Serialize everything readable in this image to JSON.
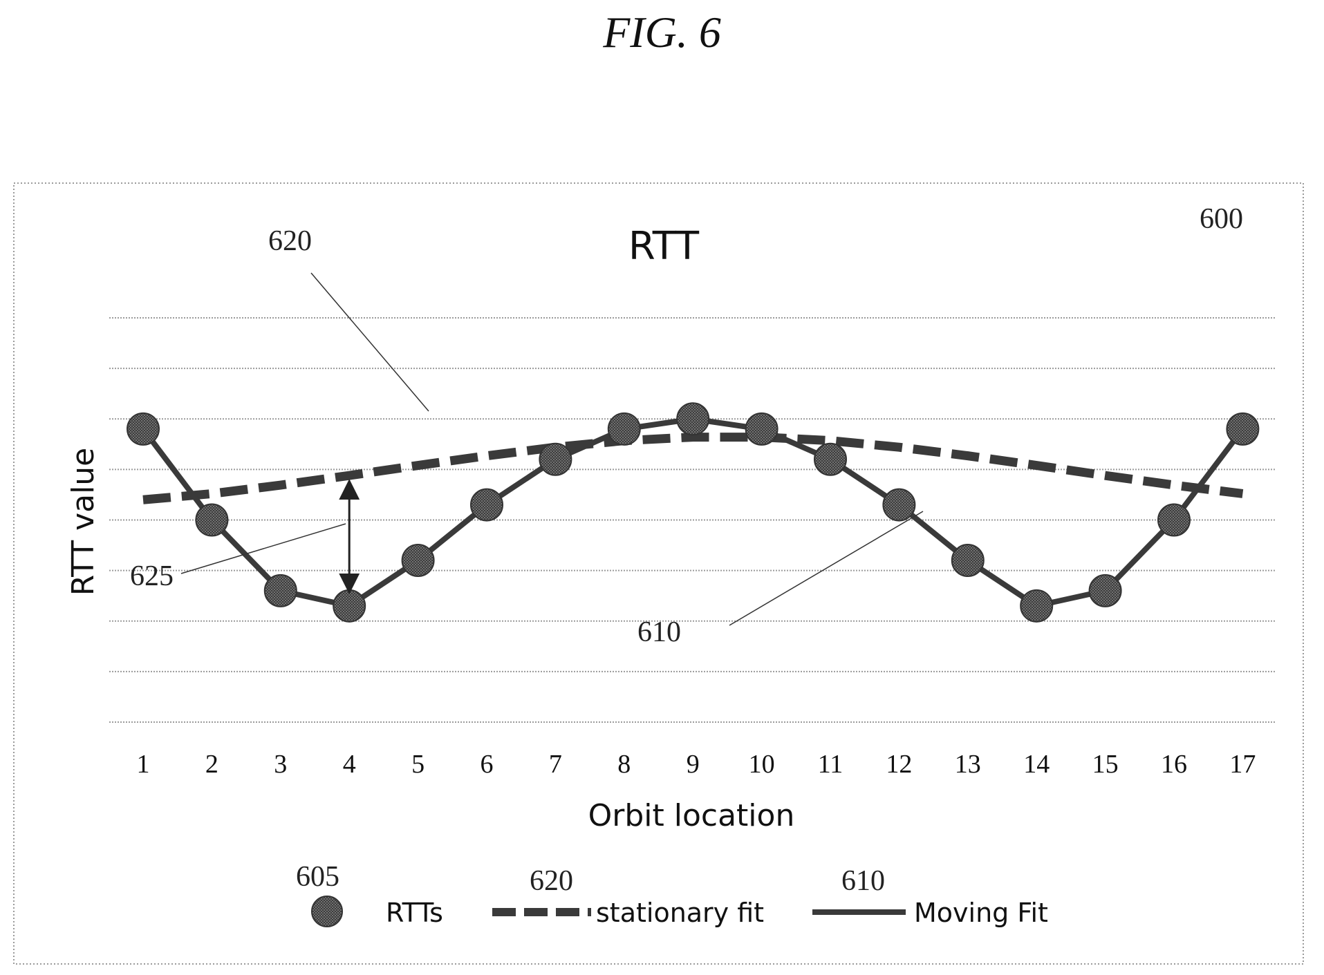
{
  "figure_label": "FIG. 6",
  "chart_data": {
    "type": "line",
    "title": "RTT",
    "xlabel": "Orbit location",
    "ylabel": "RTT value",
    "categories": [
      "1",
      "2",
      "3",
      "4",
      "5",
      "6",
      "7",
      "8",
      "9",
      "10",
      "11",
      "12",
      "13",
      "14",
      "15",
      "16",
      "17"
    ],
    "ylim": [
      0,
      8
    ],
    "grid": true,
    "legend_position": "bottom",
    "series": [
      {
        "name": "RTTs",
        "style": "markers",
        "values": [
          5.8,
          4.0,
          2.6,
          2.3,
          3.2,
          4.3,
          5.2,
          5.8,
          6.0,
          5.8,
          5.2,
          4.3,
          3.2,
          2.3,
          2.6,
          4.0,
          5.8
        ]
      },
      {
        "name": "stationary fit",
        "style": "dashed",
        "values": [
          4.4,
          4.52,
          4.69,
          4.88,
          5.08,
          5.27,
          5.44,
          5.57,
          5.64,
          5.64,
          5.57,
          5.44,
          5.27,
          5.08,
          4.88,
          4.69,
          4.52
        ]
      },
      {
        "name": "Moving Fit",
        "style": "solid",
        "values": [
          5.8,
          4.0,
          2.6,
          2.3,
          3.2,
          4.3,
          5.2,
          5.8,
          6.0,
          5.8,
          5.2,
          4.3,
          3.2,
          2.3,
          2.6,
          4.0,
          5.8
        ]
      }
    ],
    "annotations": [
      {
        "label": "600",
        "target": "chart"
      },
      {
        "label": "620",
        "target": "stationary fit"
      },
      {
        "label": "625",
        "target": "gap between stationary fit and RTT at orbit location 4"
      },
      {
        "label": "610",
        "target": "Moving Fit"
      },
      {
        "label": "605",
        "target": "legend RTTs"
      },
      {
        "label": "620",
        "target": "legend stationary fit"
      },
      {
        "label": "610",
        "target": "legend Moving Fit"
      }
    ]
  },
  "colors": {
    "marker": "#4a4a4a",
    "line": "#3a3a3a",
    "grid": "#9a9a9a",
    "frame": "#9a9a9a"
  }
}
